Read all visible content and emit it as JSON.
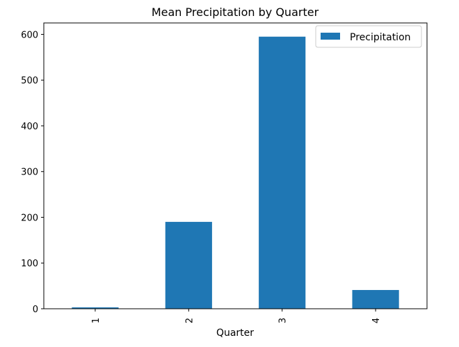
{
  "chart_data": {
    "type": "bar",
    "title": "Mean Precipitation by Quarter",
    "xlabel": "Quarter",
    "ylabel": "",
    "categories": [
      "1",
      "2",
      "3",
      "4"
    ],
    "series": [
      {
        "name": "Precipitation",
        "values": [
          3,
          190,
          595,
          41
        ]
      }
    ],
    "ylim": [
      0,
      625
    ],
    "yticks": [
      0,
      100,
      200,
      300,
      400,
      500,
      600
    ],
    "legend": "top-right",
    "grid": false,
    "colors": {
      "bar": "#1f77b4",
      "axis": "#000000",
      "legend_border": "#cccccc"
    }
  }
}
